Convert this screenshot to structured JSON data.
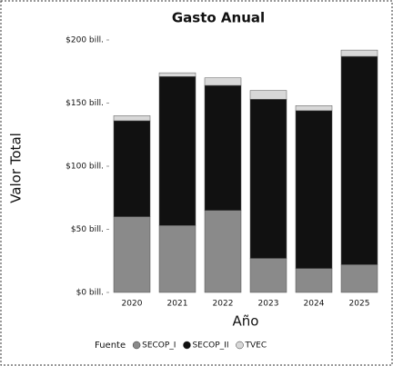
{
  "chart_data": {
    "type": "stacked_bar",
    "title": "Gasto Anual",
    "xlabel": "Año",
    "ylabel": "Valor Total",
    "categories": [
      "2020",
      "2021",
      "2022",
      "2023",
      "2024",
      "2025"
    ],
    "series": [
      {
        "name": "SECOP_I",
        "color": "#8a8a8a",
        "values": [
          60,
          53,
          65,
          27,
          19,
          22
        ]
      },
      {
        "name": "SECOP_II",
        "color": "#111111",
        "values": [
          76,
          118,
          99,
          126,
          125,
          165
        ]
      },
      {
        "name": "TVEC",
        "color": "#d8d8d8",
        "values": [
          4,
          3,
          6,
          7,
          4,
          5
        ]
      }
    ],
    "ylim": [
      0,
      200
    ],
    "yticks": [
      {
        "value": 0,
        "label": "$0 bill."
      },
      {
        "value": 50,
        "label": "$50 bill."
      },
      {
        "value": 100,
        "label": "$100 bill."
      },
      {
        "value": 150,
        "label": "$150 bill."
      },
      {
        "value": 200,
        "label": "$200 bill."
      }
    ],
    "legend_title": "Fuente",
    "legend": "bottom"
  }
}
